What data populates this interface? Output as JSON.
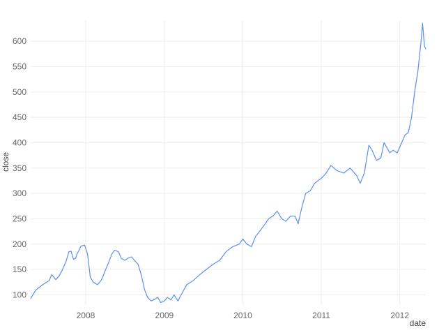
{
  "chart_data": {
    "type": "line",
    "title": "",
    "xlabel": "date",
    "ylabel": "close",
    "x_ticks": [
      "2008",
      "2009",
      "2010",
      "2011",
      "2012"
    ],
    "y_ticks": [
      100,
      150,
      200,
      250,
      300,
      350,
      400,
      450,
      500,
      550,
      600
    ],
    "xlim": [
      "2007-04-20",
      "2012-05-01"
    ],
    "ylim": [
      80,
      640
    ],
    "grid": true,
    "colors": {
      "line": "#5b8ff0",
      "grid": "#ededed",
      "text": "#666666"
    },
    "series": [
      {
        "x": [
          "2007-04-20",
          "2007-05-15",
          "2007-06-15",
          "2007-07-15",
          "2007-07-27",
          "2007-08-15",
          "2007-09-01",
          "2007-09-15",
          "2007-10-01",
          "2007-10-15",
          "2007-10-25",
          "2007-11-05",
          "2007-11-15",
          "2007-11-21",
          "2007-12-01",
          "2007-12-10",
          "2007-12-27",
          "2008-01-10",
          "2008-01-22",
          "2008-02-05",
          "2008-02-25",
          "2008-03-15",
          "2008-04-01",
          "2008-04-15",
          "2008-05-01",
          "2008-05-15",
          "2008-06-01",
          "2008-06-15",
          "2008-07-01",
          "2008-07-15",
          "2008-08-01",
          "2008-08-15",
          "2008-09-01",
          "2008-09-15",
          "2008-10-01",
          "2008-10-15",
          "2008-11-01",
          "2008-11-20",
          "2008-12-01",
          "2008-12-15",
          "2009-01-01",
          "2009-01-15",
          "2009-02-01",
          "2009-02-15",
          "2009-03-05",
          "2009-03-20",
          "2009-04-15",
          "2009-05-15",
          "2009-06-15",
          "2009-07-15",
          "2009-08-15",
          "2009-09-15",
          "2009-10-15",
          "2009-11-15",
          "2009-12-15",
          "2010-01-01",
          "2010-01-20",
          "2010-02-10",
          "2010-03-01",
          "2010-03-20",
          "2010-04-15",
          "2010-05-01",
          "2010-05-20",
          "2010-06-10",
          "2010-07-01",
          "2010-07-20",
          "2010-08-10",
          "2010-09-01",
          "2010-09-15",
          "2010-10-01",
          "2010-10-20",
          "2010-11-10",
          "2010-12-01",
          "2011-01-01",
          "2011-01-20",
          "2011-02-15",
          "2011-03-15",
          "2011-04-15",
          "2011-05-15",
          "2011-06-15",
          "2011-07-01",
          "2011-07-20",
          "2011-08-10",
          "2011-08-25",
          "2011-09-15",
          "2011-10-05",
          "2011-10-20",
          "2011-11-15",
          "2011-12-01",
          "2011-12-20",
          "2012-01-10",
          "2012-01-25",
          "2012-02-10",
          "2012-02-25",
          "2012-03-10",
          "2012-03-25",
          "2012-04-09",
          "2012-04-16",
          "2012-04-25",
          "2012-05-01"
        ],
        "y": [
          93,
          110,
          120,
          128,
          140,
          130,
          138,
          150,
          165,
          185,
          186,
          170,
          172,
          180,
          188,
          196,
          198,
          180,
          135,
          125,
          120,
          130,
          148,
          162,
          180,
          188,
          185,
          172,
          168,
          172,
          175,
          168,
          160,
          140,
          110,
          95,
          88,
          92,
          95,
          85,
          88,
          95,
          90,
          100,
          88,
          100,
          120,
          128,
          140,
          150,
          160,
          168,
          185,
          195,
          200,
          210,
          200,
          195,
          215,
          225,
          240,
          250,
          255,
          265,
          250,
          245,
          255,
          255,
          240,
          270,
          300,
          305,
          320,
          330,
          338,
          355,
          345,
          340,
          350,
          335,
          320,
          340,
          395,
          385,
          365,
          370,
          400,
          380,
          385,
          380,
          400,
          415,
          420,
          450,
          500,
          540,
          600,
          635,
          590,
          585
        ]
      }
    ]
  }
}
